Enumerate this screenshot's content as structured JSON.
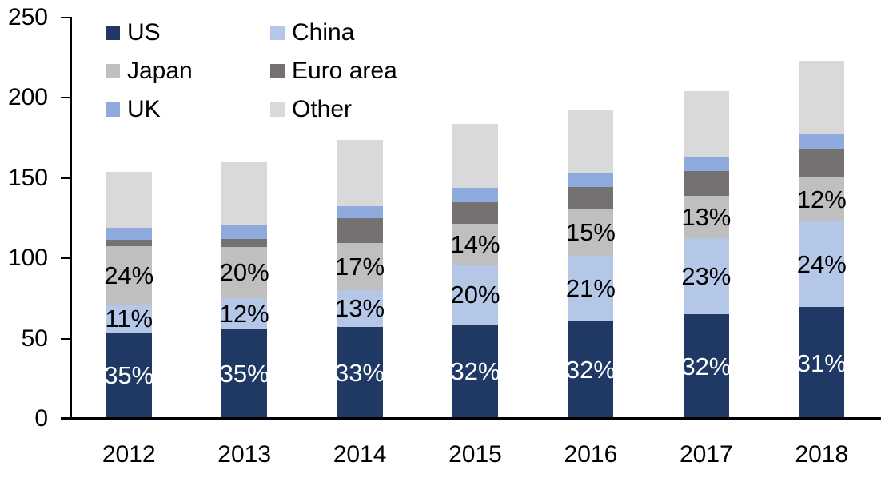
{
  "chart_data": {
    "type": "bar",
    "stacked": true,
    "title": "",
    "xlabel": "",
    "ylabel": "",
    "categories": [
      "2012",
      "2013",
      "2014",
      "2015",
      "2016",
      "2017",
      "2018"
    ],
    "series": [
      {
        "name": "US",
        "color": "#1f3864",
        "values": [
          53.9,
          56.0,
          57.4,
          58.9,
          61.4,
          65.4,
          69.5
        ],
        "data_labels": [
          "35%",
          "35%",
          "33%",
          "32%",
          "32%",
          "32%",
          "31%"
        ],
        "data_label_color": "#ffffff"
      },
      {
        "name": "China",
        "color": "#b4c7e7",
        "values": [
          16.9,
          19.2,
          22.6,
          36.8,
          40.3,
          47.0,
          53.8
        ],
        "data_labels": [
          "11%",
          "12%",
          "13%",
          "20%",
          "21%",
          "23%",
          "24%"
        ],
        "data_label_color": "#000000"
      },
      {
        "name": "Japan",
        "color": "#bfbfbf",
        "values": [
          37.0,
          32.0,
          29.6,
          25.8,
          28.8,
          26.6,
          27.0
        ],
        "data_labels": [
          "24%",
          "20%",
          "17%",
          "14%",
          "15%",
          "13%",
          "12%"
        ],
        "data_label_color": "#000000"
      },
      {
        "name": "Euro area",
        "color": "#767171",
        "values": [
          3.5,
          5.0,
          15.5,
          13.5,
          14.0,
          15.5,
          17.9
        ]
      },
      {
        "name": "UK",
        "color": "#8faadc",
        "values": [
          7.5,
          8.5,
          7.5,
          9.0,
          9.0,
          9.0,
          9.0
        ]
      },
      {
        "name": "Other",
        "color": "#d9d9d9",
        "values": [
          35.2,
          39.3,
          41.4,
          40.0,
          38.5,
          40.5,
          45.8
        ]
      }
    ],
    "bar_totals_approx": [
      154,
      160,
      174,
      184,
      192,
      204,
      223
    ],
    "ylim": [
      0,
      250
    ],
    "yticks": [
      0,
      50,
      100,
      150,
      200,
      250
    ],
    "grid": false,
    "legend_position": "top-left, two columns",
    "legend_order": [
      "US",
      "China",
      "Japan",
      "Euro area",
      "UK",
      "Other"
    ],
    "axis_color": "#000000",
    "text_color": "#000000"
  }
}
